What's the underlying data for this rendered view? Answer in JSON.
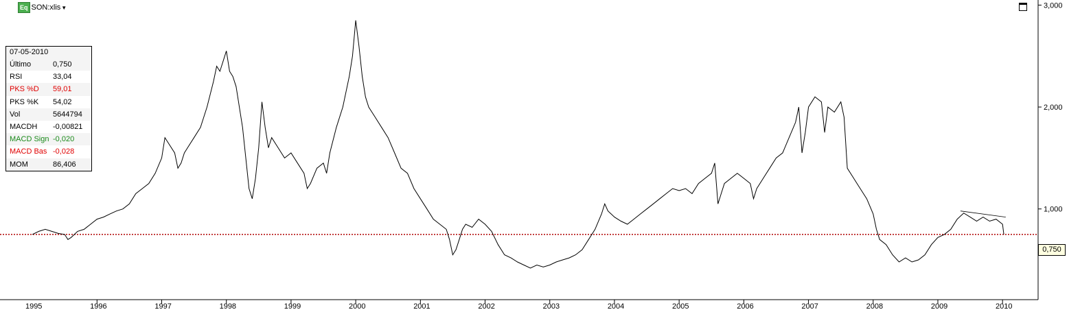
{
  "symbol": {
    "badge": "Eq",
    "name": "SON:xlis"
  },
  "info_panel": {
    "date": "07-05-2010",
    "rows": [
      {
        "label": "Último",
        "value": "0,750",
        "color": "#000000"
      },
      {
        "label": "RSI",
        "value": "33,04",
        "color": "#000000"
      },
      {
        "label": "PKS %D",
        "value": "59,01",
        "color": "#e00000"
      },
      {
        "label": "PKS %K",
        "value": "54,02",
        "color": "#000000"
      },
      {
        "label": "Vol",
        "value": "5644794",
        "color": "#000000"
      },
      {
        "label": "MACDH",
        "value": "-0,00821",
        "color": "#000000"
      },
      {
        "label": "MACD Sign",
        "value": "-0,020",
        "color": "#1a8a1a"
      },
      {
        "label": "MACD Bas",
        "value": "-0,028",
        "color": "#e00000"
      },
      {
        "label": "MOM",
        "value": "86,406",
        "color": "#000000"
      }
    ]
  },
  "last_price_label": "0,750",
  "chart_data": {
    "type": "line",
    "series": [
      {
        "values": [
          [
            1995.0,
            0.75
          ],
          [
            1995.1,
            0.78
          ],
          [
            1995.2,
            0.8
          ],
          [
            1995.3,
            0.78
          ],
          [
            1995.4,
            0.76
          ],
          [
            1995.5,
            0.75
          ],
          [
            1995.55,
            0.7
          ],
          [
            1995.6,
            0.72
          ],
          [
            1995.7,
            0.78
          ],
          [
            1995.8,
            0.8
          ],
          [
            1995.9,
            0.85
          ],
          [
            1996.0,
            0.9
          ],
          [
            1996.1,
            0.92
          ],
          [
            1996.2,
            0.95
          ],
          [
            1996.3,
            0.98
          ],
          [
            1996.4,
            1.0
          ],
          [
            1996.5,
            1.05
          ],
          [
            1996.6,
            1.15
          ],
          [
            1996.7,
            1.2
          ],
          [
            1996.8,
            1.25
          ],
          [
            1996.9,
            1.35
          ],
          [
            1997.0,
            1.5
          ],
          [
            1997.05,
            1.7
          ],
          [
            1997.1,
            1.65
          ],
          [
            1997.2,
            1.55
          ],
          [
            1997.25,
            1.4
          ],
          [
            1997.3,
            1.45
          ],
          [
            1997.35,
            1.55
          ],
          [
            1997.4,
            1.6
          ],
          [
            1997.5,
            1.7
          ],
          [
            1997.6,
            1.8
          ],
          [
            1997.7,
            2.0
          ],
          [
            1997.8,
            2.25
          ],
          [
            1997.85,
            2.4
          ],
          [
            1997.9,
            2.35
          ],
          [
            1997.95,
            2.45
          ],
          [
            1998.0,
            2.55
          ],
          [
            1998.05,
            2.35
          ],
          [
            1998.1,
            2.3
          ],
          [
            1998.15,
            2.2
          ],
          [
            1998.2,
            2.0
          ],
          [
            1998.25,
            1.8
          ],
          [
            1998.3,
            1.5
          ],
          [
            1998.35,
            1.2
          ],
          [
            1998.4,
            1.1
          ],
          [
            1998.45,
            1.3
          ],
          [
            1998.5,
            1.6
          ],
          [
            1998.55,
            2.05
          ],
          [
            1998.6,
            1.8
          ],
          [
            1998.65,
            1.6
          ],
          [
            1998.7,
            1.7
          ],
          [
            1998.8,
            1.6
          ],
          [
            1998.9,
            1.5
          ],
          [
            1999.0,
            1.55
          ],
          [
            1999.1,
            1.45
          ],
          [
            1999.2,
            1.35
          ],
          [
            1999.25,
            1.2
          ],
          [
            1999.3,
            1.25
          ],
          [
            1999.4,
            1.4
          ],
          [
            1999.5,
            1.45
          ],
          [
            1999.55,
            1.35
          ],
          [
            1999.6,
            1.55
          ],
          [
            1999.7,
            1.8
          ],
          [
            1999.8,
            2.0
          ],
          [
            1999.9,
            2.3
          ],
          [
            1999.95,
            2.5
          ],
          [
            2000.0,
            2.85
          ],
          [
            2000.05,
            2.6
          ],
          [
            2000.1,
            2.3
          ],
          [
            2000.15,
            2.1
          ],
          [
            2000.2,
            2.0
          ],
          [
            2000.3,
            1.9
          ],
          [
            2000.4,
            1.8
          ],
          [
            2000.5,
            1.7
          ],
          [
            2000.6,
            1.55
          ],
          [
            2000.7,
            1.4
          ],
          [
            2000.8,
            1.35
          ],
          [
            2000.9,
            1.2
          ],
          [
            2001.0,
            1.1
          ],
          [
            2001.1,
            1.0
          ],
          [
            2001.2,
            0.9
          ],
          [
            2001.3,
            0.85
          ],
          [
            2001.4,
            0.8
          ],
          [
            2001.45,
            0.7
          ],
          [
            2001.5,
            0.55
          ],
          [
            2001.55,
            0.6
          ],
          [
            2001.6,
            0.7
          ],
          [
            2001.65,
            0.8
          ],
          [
            2001.7,
            0.85
          ],
          [
            2001.8,
            0.82
          ],
          [
            2001.9,
            0.9
          ],
          [
            2002.0,
            0.85
          ],
          [
            2002.1,
            0.78
          ],
          [
            2002.2,
            0.65
          ],
          [
            2002.3,
            0.55
          ],
          [
            2002.4,
            0.52
          ],
          [
            2002.5,
            0.48
          ],
          [
            2002.6,
            0.45
          ],
          [
            2002.7,
            0.42
          ],
          [
            2002.8,
            0.45
          ],
          [
            2002.9,
            0.43
          ],
          [
            2003.0,
            0.45
          ],
          [
            2003.1,
            0.48
          ],
          [
            2003.2,
            0.5
          ],
          [
            2003.3,
            0.52
          ],
          [
            2003.4,
            0.55
          ],
          [
            2003.5,
            0.6
          ],
          [
            2003.6,
            0.7
          ],
          [
            2003.7,
            0.8
          ],
          [
            2003.8,
            0.95
          ],
          [
            2003.85,
            1.05
          ],
          [
            2003.9,
            0.98
          ],
          [
            2004.0,
            0.92
          ],
          [
            2004.1,
            0.88
          ],
          [
            2004.2,
            0.85
          ],
          [
            2004.3,
            0.9
          ],
          [
            2004.4,
            0.95
          ],
          [
            2004.5,
            1.0
          ],
          [
            2004.6,
            1.05
          ],
          [
            2004.7,
            1.1
          ],
          [
            2004.8,
            1.15
          ],
          [
            2004.9,
            1.2
          ],
          [
            2005.0,
            1.18
          ],
          [
            2005.1,
            1.2
          ],
          [
            2005.2,
            1.15
          ],
          [
            2005.3,
            1.25
          ],
          [
            2005.4,
            1.3
          ],
          [
            2005.5,
            1.35
          ],
          [
            2005.55,
            1.45
          ],
          [
            2005.6,
            1.05
          ],
          [
            2005.65,
            1.15
          ],
          [
            2005.7,
            1.25
          ],
          [
            2005.8,
            1.3
          ],
          [
            2005.9,
            1.35
          ],
          [
            2006.0,
            1.3
          ],
          [
            2006.1,
            1.25
          ],
          [
            2006.15,
            1.1
          ],
          [
            2006.2,
            1.2
          ],
          [
            2006.3,
            1.3
          ],
          [
            2006.4,
            1.4
          ],
          [
            2006.5,
            1.5
          ],
          [
            2006.6,
            1.55
          ],
          [
            2006.7,
            1.7
          ],
          [
            2006.8,
            1.85
          ],
          [
            2006.85,
            2.0
          ],
          [
            2006.9,
            1.55
          ],
          [
            2006.95,
            1.75
          ],
          [
            2007.0,
            2.0
          ],
          [
            2007.1,
            2.1
          ],
          [
            2007.2,
            2.05
          ],
          [
            2007.25,
            1.75
          ],
          [
            2007.3,
            2.0
          ],
          [
            2007.4,
            1.95
          ],
          [
            2007.5,
            2.05
          ],
          [
            2007.55,
            1.9
          ],
          [
            2007.6,
            1.4
          ],
          [
            2007.7,
            1.3
          ],
          [
            2007.8,
            1.2
          ],
          [
            2007.9,
            1.1
          ],
          [
            2008.0,
            0.95
          ],
          [
            2008.05,
            0.8
          ],
          [
            2008.1,
            0.7
          ],
          [
            2008.2,
            0.65
          ],
          [
            2008.3,
            0.55
          ],
          [
            2008.4,
            0.48
          ],
          [
            2008.5,
            0.52
          ],
          [
            2008.6,
            0.48
          ],
          [
            2008.7,
            0.5
          ],
          [
            2008.8,
            0.55
          ],
          [
            2008.9,
            0.65
          ],
          [
            2009.0,
            0.72
          ],
          [
            2009.1,
            0.75
          ],
          [
            2009.2,
            0.8
          ],
          [
            2009.3,
            0.9
          ],
          [
            2009.4,
            0.96
          ],
          [
            2009.5,
            0.92
          ],
          [
            2009.6,
            0.88
          ],
          [
            2009.7,
            0.92
          ],
          [
            2009.8,
            0.88
          ],
          [
            2009.9,
            0.9
          ],
          [
            2010.0,
            0.85
          ],
          [
            2010.02,
            0.75
          ]
        ]
      }
    ],
    "trendline": [
      [
        2009.35,
        0.98
      ],
      [
        2010.05,
        0.92
      ]
    ],
    "reference_line": {
      "y": 0.75,
      "color": "#b00000",
      "style": "dotted"
    },
    "x_ticks": [
      "1995",
      "1996",
      "1997",
      "1998",
      "1999",
      "2000",
      "2001",
      "2002",
      "2003",
      "2004",
      "2005",
      "2006",
      "2007",
      "2008",
      "2009",
      "2010"
    ],
    "y_ticks": [
      "1,000",
      "2,000",
      "3,000"
    ],
    "xlim": [
      1994.5,
      2010.55
    ],
    "ylim": [
      0.11,
      3.05
    ],
    "line_color": "#000000",
    "y_axis_side": "right",
    "grid": false,
    "legend": "none"
  }
}
